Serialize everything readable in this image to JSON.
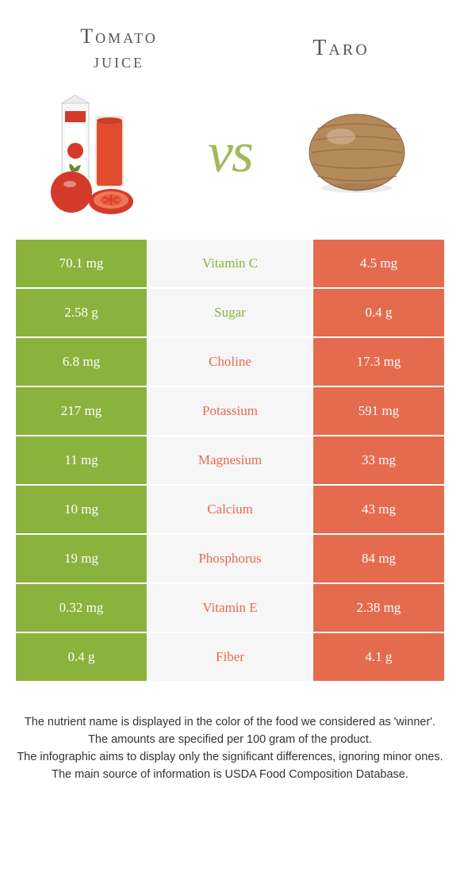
{
  "colors": {
    "green": "#8cb23e",
    "orange": "#e56b4e",
    "mid_bg": "#f6f6f6",
    "text": "#555555"
  },
  "left": {
    "title_line1": "Tomato",
    "title_line2": "juice"
  },
  "right": {
    "title": "Taro"
  },
  "vs": "vs",
  "rows": [
    {
      "nutrient": "Vitamin C",
      "left": "70.1 mg",
      "right": "4.5 mg",
      "winner": "green"
    },
    {
      "nutrient": "Sugar",
      "left": "2.58 g",
      "right": "0.4 g",
      "winner": "green"
    },
    {
      "nutrient": "Choline",
      "left": "6.8 mg",
      "right": "17.3 mg",
      "winner": "orange"
    },
    {
      "nutrient": "Potassium",
      "left": "217 mg",
      "right": "591 mg",
      "winner": "orange"
    },
    {
      "nutrient": "Magnesium",
      "left": "11 mg",
      "right": "33 mg",
      "winner": "orange"
    },
    {
      "nutrient": "Calcium",
      "left": "10 mg",
      "right": "43 mg",
      "winner": "orange"
    },
    {
      "nutrient": "Phosphorus",
      "left": "19 mg",
      "right": "84 mg",
      "winner": "orange"
    },
    {
      "nutrient": "Vitamin E",
      "left": "0.32 mg",
      "right": "2.38 mg",
      "winner": "orange"
    },
    {
      "nutrient": "Fiber",
      "left": "0.4 g",
      "right": "4.1 g",
      "winner": "orange"
    }
  ],
  "footer": {
    "l1": "The nutrient name is displayed in the color of the food we considered as 'winner'.",
    "l2": "The amounts are specified per 100 gram of the product.",
    "l3": "The infographic aims to display only the significant differences, ignoring minor ones.",
    "l4": "The main source of information is USDA Food Composition Database."
  }
}
